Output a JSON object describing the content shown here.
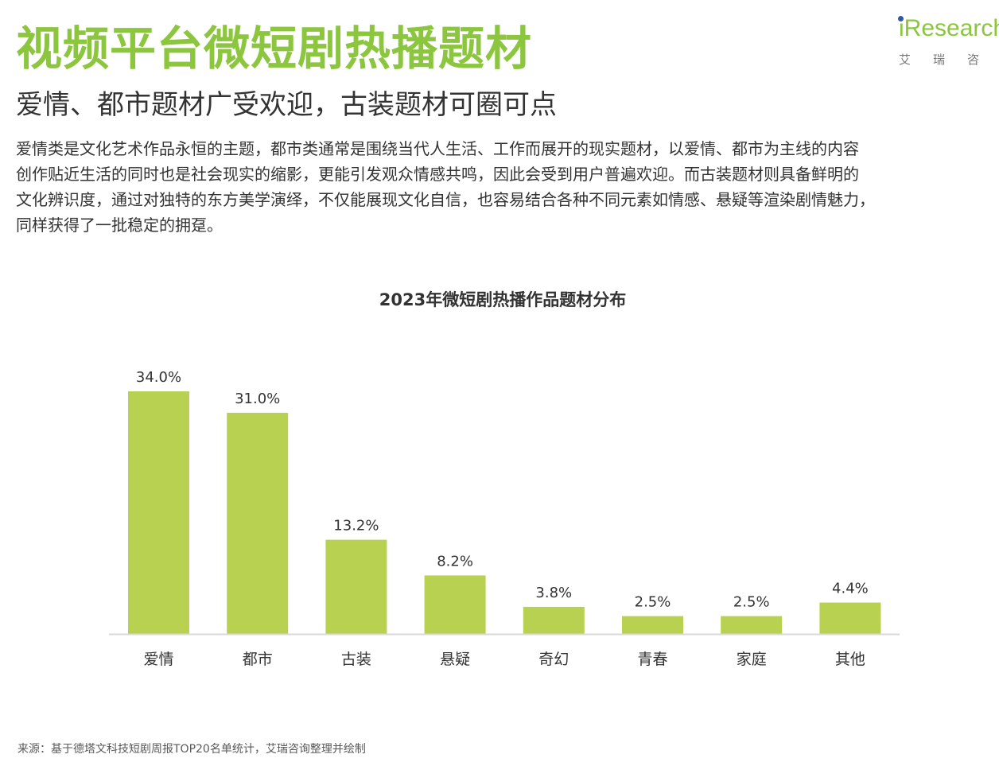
{
  "header": {
    "title": "视频平台微短剧热播题材",
    "subtitle": "爱情、都市题材广受欢迎，古装题材可圈可点"
  },
  "logo": {
    "brand": "iResearch",
    "cn_name": "艾瑞咨"
  },
  "body": {
    "lines": [
      "爱情类是文化艺术作品永恒的主题，都市类通常是围绕当代人生活、工作而展开的现实题材，以爱情、都市为主线的内容",
      "创作贴近生活的同时也是社会现实的缩影，更能引发观众情感共鸣，因此会受到用户普遍欢迎。而古装题材则具备鲜明的",
      "文化辨识度，通过对独特的东方美学演绎，不仅能展现文化自信，也容易结合各种不同元素如情感、悬疑等渲染剧情魅力，",
      "同样获得了一批稳定的拥趸。"
    ]
  },
  "chart_data": {
    "type": "bar",
    "title": "2023年微短剧热播作品题材分布",
    "xlabel": "",
    "ylabel": "",
    "categories": [
      "爱情",
      "都市",
      "古装",
      "悬疑",
      "奇幻",
      "青春",
      "家庭",
      "其他"
    ],
    "values": [
      34.0,
      31.0,
      13.2,
      8.2,
      3.8,
      2.5,
      2.5,
      4.4
    ],
    "labels": [
      "34.0%",
      "31.0%",
      "13.2%",
      "8.2%",
      "3.8%",
      "2.5%",
      "2.5%",
      "4.4%"
    ],
    "unit": "%",
    "ylim": [
      0,
      34.0
    ],
    "grid": false,
    "legend": "none",
    "bar_color": "#b9d150",
    "axis_color": "#d9d9d9"
  },
  "footer": {
    "source": "来源：基于德塔文科技短剧周报TOP20名单统计，艾瑞咨询整理并绘制"
  },
  "colors": {
    "accent": "#8cc63f",
    "text": "#333333"
  }
}
